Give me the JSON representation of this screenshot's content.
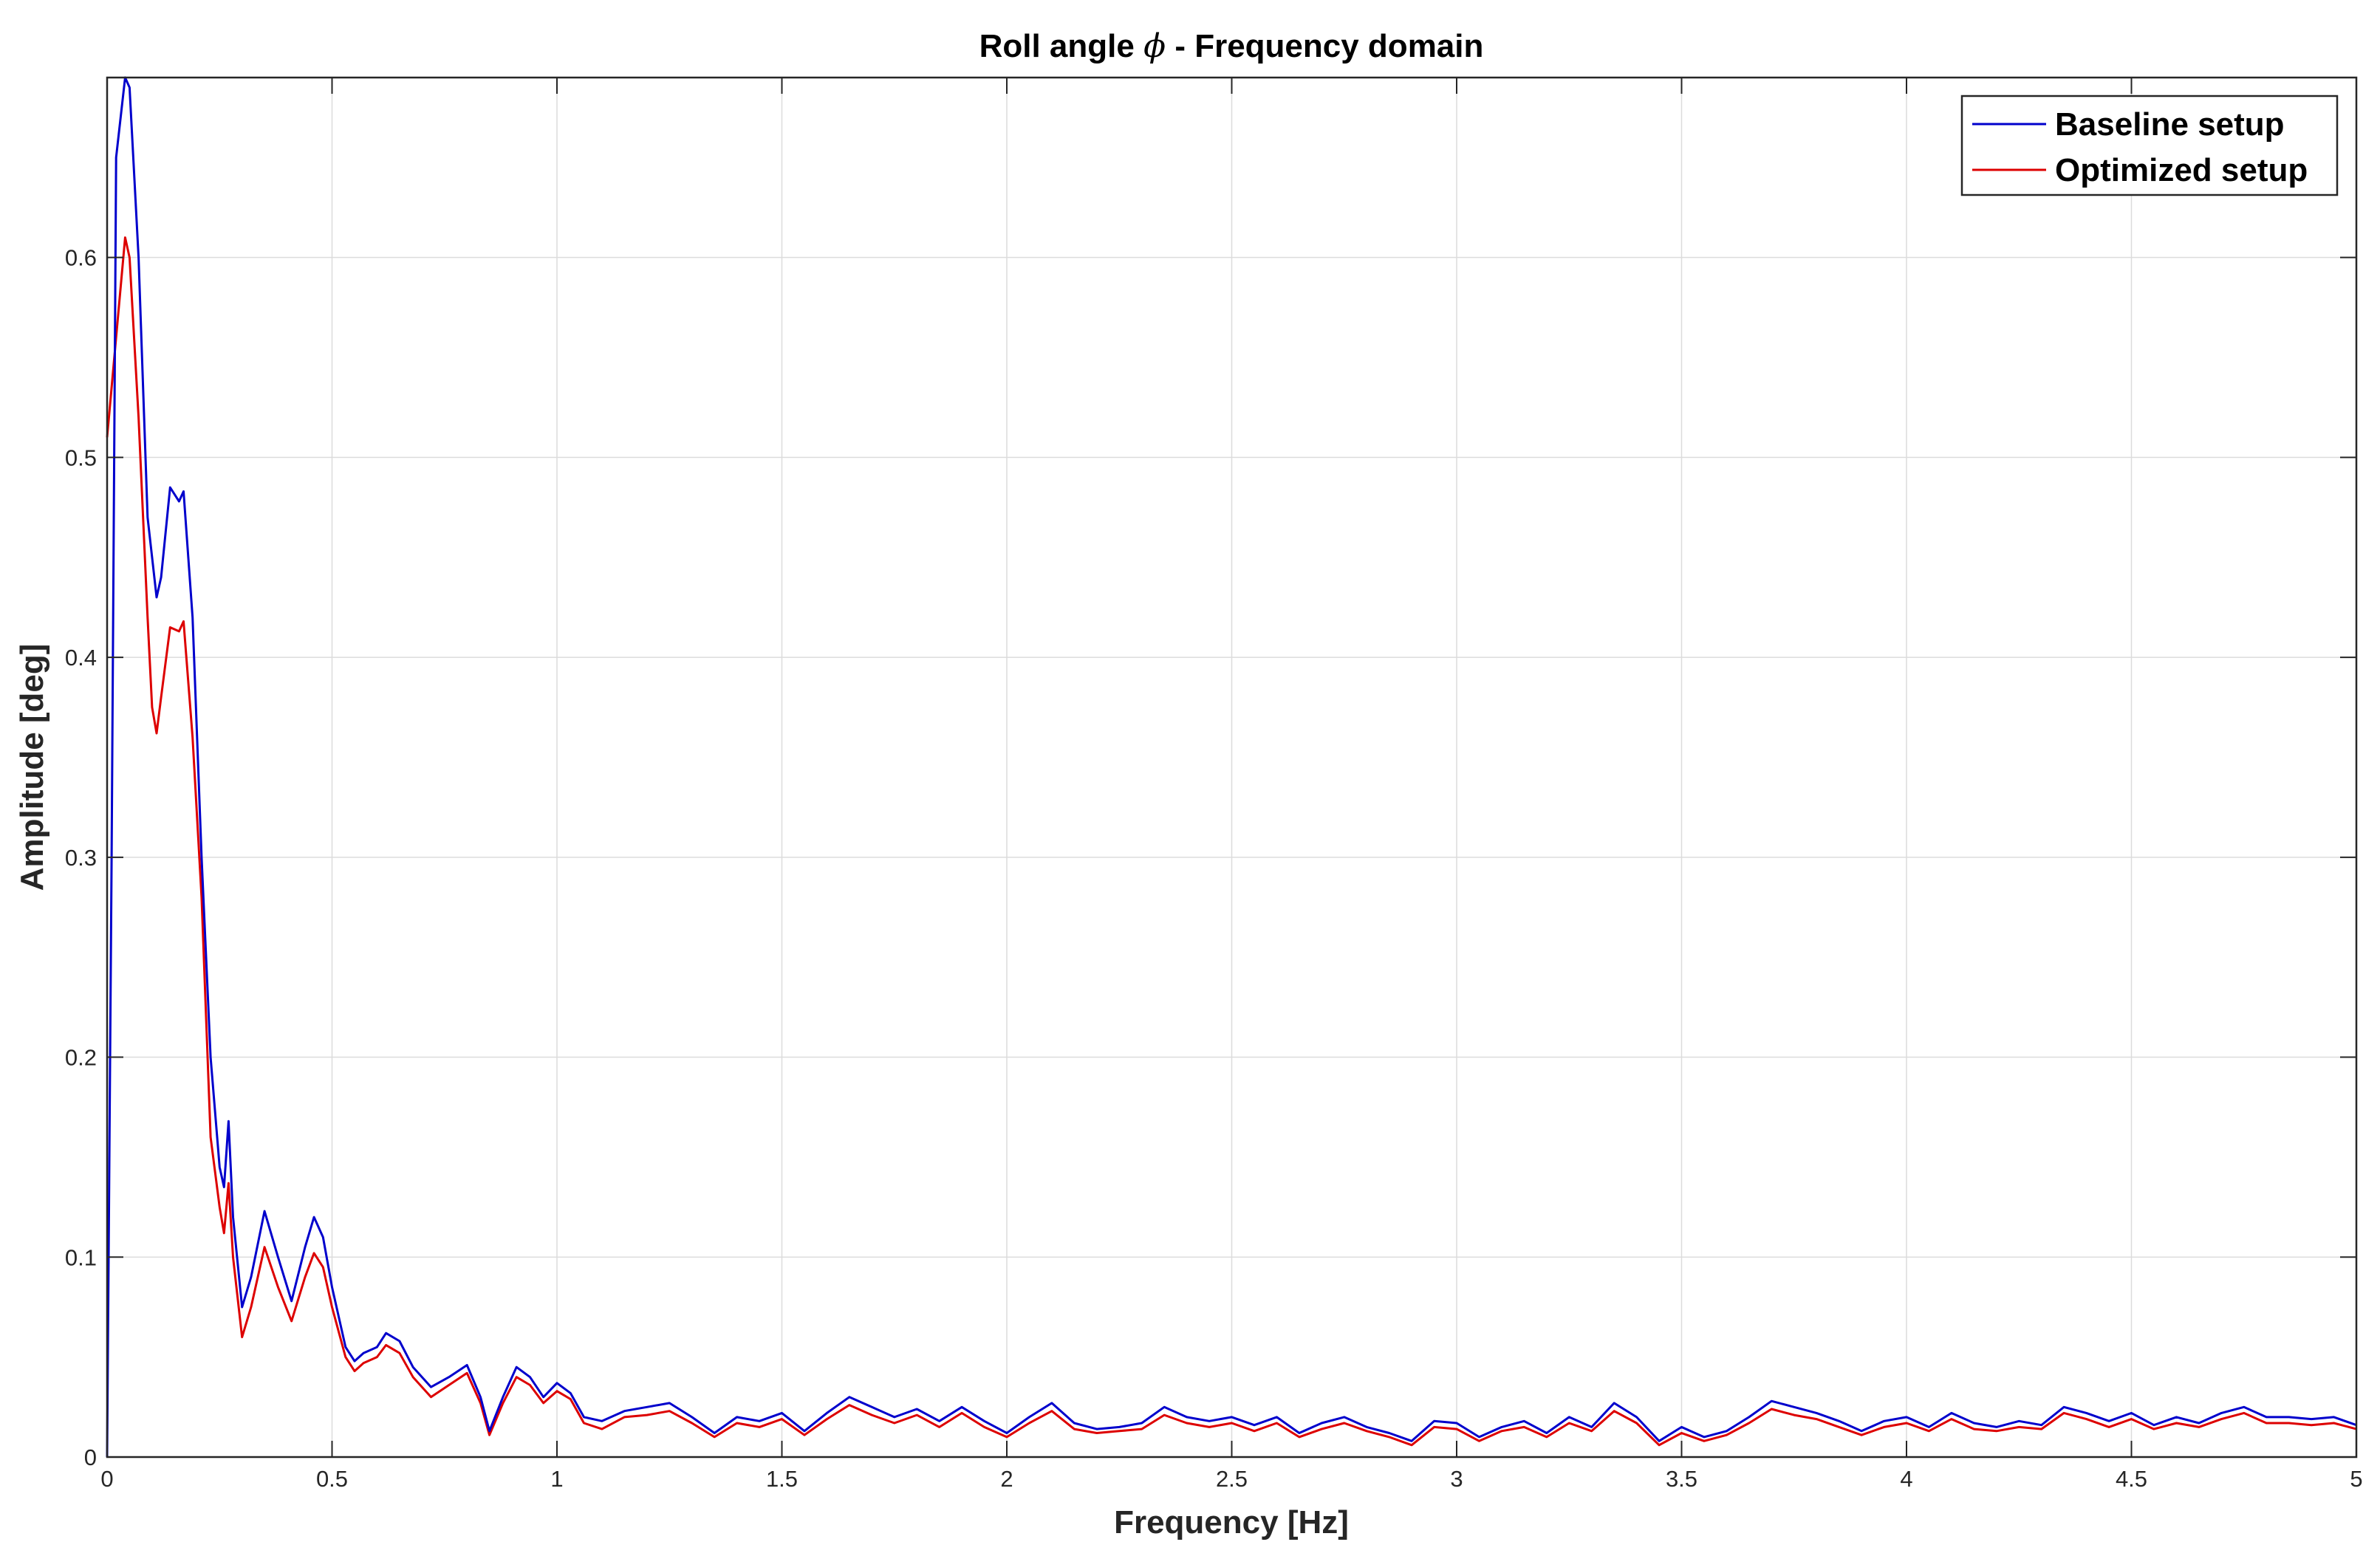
{
  "chart_data": {
    "type": "line",
    "title_pre": "Roll angle ",
    "title_symbol": "ϕ",
    "title_post": " - Frequency domain",
    "xlabel": "Frequency [Hz]",
    "ylabel": "Amplitude [deg]",
    "xlim": [
      0,
      5
    ],
    "ylim": [
      0,
      0.69
    ],
    "grid": true,
    "legend_position": "top-right",
    "x_ticks": [
      0,
      0.5,
      1,
      1.5,
      2,
      2.5,
      3,
      3.5,
      4,
      4.5,
      5
    ],
    "x_tick_labels": [
      "0",
      "0.5",
      "1",
      "1.5",
      "2",
      "2.5",
      "3",
      "3.5",
      "4",
      "4.5",
      "5"
    ],
    "y_ticks": [
      0,
      0.1,
      0.2,
      0.3,
      0.4,
      0.5,
      0.6
    ],
    "y_tick_labels": [
      "0",
      "0.1",
      "0.2",
      "0.3",
      "0.4",
      "0.5",
      "0.6"
    ],
    "series": [
      {
        "name": "Baseline setup",
        "color": "#0000cc",
        "points": [
          [
            0,
            0
          ],
          [
            0.01,
            0.3
          ],
          [
            0.02,
            0.65
          ],
          [
            0.04,
            0.69
          ],
          [
            0.05,
            0.685
          ],
          [
            0.07,
            0.6
          ],
          [
            0.09,
            0.47
          ],
          [
            0.11,
            0.43
          ],
          [
            0.12,
            0.44
          ],
          [
            0.14,
            0.485
          ],
          [
            0.16,
            0.478
          ],
          [
            0.17,
            0.483
          ],
          [
            0.19,
            0.42
          ],
          [
            0.21,
            0.3
          ],
          [
            0.23,
            0.2
          ],
          [
            0.25,
            0.145
          ],
          [
            0.26,
            0.135
          ],
          [
            0.27,
            0.168
          ],
          [
            0.28,
            0.12
          ],
          [
            0.3,
            0.075
          ],
          [
            0.32,
            0.09
          ],
          [
            0.35,
            0.123
          ],
          [
            0.38,
            0.1
          ],
          [
            0.41,
            0.078
          ],
          [
            0.44,
            0.105
          ],
          [
            0.46,
            0.12
          ],
          [
            0.48,
            0.11
          ],
          [
            0.5,
            0.085
          ],
          [
            0.53,
            0.055
          ],
          [
            0.55,
            0.048
          ],
          [
            0.57,
            0.052
          ],
          [
            0.6,
            0.055
          ],
          [
            0.62,
            0.062
          ],
          [
            0.65,
            0.058
          ],
          [
            0.68,
            0.045
          ],
          [
            0.72,
            0.035
          ],
          [
            0.76,
            0.04
          ],
          [
            0.8,
            0.046
          ],
          [
            0.83,
            0.03
          ],
          [
            0.85,
            0.013
          ],
          [
            0.88,
            0.03
          ],
          [
            0.91,
            0.045
          ],
          [
            0.94,
            0.04
          ],
          [
            0.97,
            0.03
          ],
          [
            1,
            0.037
          ],
          [
            1.03,
            0.032
          ],
          [
            1.06,
            0.02
          ],
          [
            1.1,
            0.018
          ],
          [
            1.15,
            0.023
          ],
          [
            1.2,
            0.025
          ],
          [
            1.25,
            0.027
          ],
          [
            1.3,
            0.02
          ],
          [
            1.35,
            0.012
          ],
          [
            1.4,
            0.02
          ],
          [
            1.45,
            0.018
          ],
          [
            1.5,
            0.022
          ],
          [
            1.55,
            0.013
          ],
          [
            1.6,
            0.022
          ],
          [
            1.65,
            0.03
          ],
          [
            1.7,
            0.025
          ],
          [
            1.75,
            0.02
          ],
          [
            1.8,
            0.024
          ],
          [
            1.85,
            0.018
          ],
          [
            1.9,
            0.025
          ],
          [
            1.95,
            0.018
          ],
          [
            2,
            0.012
          ],
          [
            2.05,
            0.02
          ],
          [
            2.1,
            0.027
          ],
          [
            2.15,
            0.017
          ],
          [
            2.2,
            0.014
          ],
          [
            2.25,
            0.015
          ],
          [
            2.3,
            0.017
          ],
          [
            2.35,
            0.025
          ],
          [
            2.4,
            0.02
          ],
          [
            2.45,
            0.018
          ],
          [
            2.5,
            0.02
          ],
          [
            2.55,
            0.016
          ],
          [
            2.6,
            0.02
          ],
          [
            2.65,
            0.012
          ],
          [
            2.7,
            0.017
          ],
          [
            2.75,
            0.02
          ],
          [
            2.8,
            0.015
          ],
          [
            2.85,
            0.012
          ],
          [
            2.9,
            0.008
          ],
          [
            2.95,
            0.018
          ],
          [
            3,
            0.017
          ],
          [
            3.05,
            0.01
          ],
          [
            3.1,
            0.015
          ],
          [
            3.15,
            0.018
          ],
          [
            3.2,
            0.012
          ],
          [
            3.25,
            0.02
          ],
          [
            3.3,
            0.015
          ],
          [
            3.35,
            0.027
          ],
          [
            3.4,
            0.02
          ],
          [
            3.45,
            0.008
          ],
          [
            3.5,
            0.015
          ],
          [
            3.55,
            0.01
          ],
          [
            3.6,
            0.013
          ],
          [
            3.65,
            0.02
          ],
          [
            3.7,
            0.028
          ],
          [
            3.75,
            0.025
          ],
          [
            3.8,
            0.022
          ],
          [
            3.85,
            0.018
          ],
          [
            3.9,
            0.013
          ],
          [
            3.95,
            0.018
          ],
          [
            4,
            0.02
          ],
          [
            4.05,
            0.015
          ],
          [
            4.1,
            0.022
          ],
          [
            4.15,
            0.017
          ],
          [
            4.2,
            0.015
          ],
          [
            4.25,
            0.018
          ],
          [
            4.3,
            0.016
          ],
          [
            4.35,
            0.025
          ],
          [
            4.4,
            0.022
          ],
          [
            4.45,
            0.018
          ],
          [
            4.5,
            0.022
          ],
          [
            4.55,
            0.016
          ],
          [
            4.6,
            0.02
          ],
          [
            4.65,
            0.017
          ],
          [
            4.7,
            0.022
          ],
          [
            4.75,
            0.025
          ],
          [
            4.8,
            0.02
          ],
          [
            4.85,
            0.02
          ],
          [
            4.9,
            0.019
          ],
          [
            4.95,
            0.02
          ],
          [
            5,
            0.016
          ]
        ]
      },
      {
        "name": "Optimized setup",
        "color": "#dd0000",
        "points": [
          [
            0,
            0.51
          ],
          [
            0.02,
            0.56
          ],
          [
            0.04,
            0.61
          ],
          [
            0.05,
            0.6
          ],
          [
            0.07,
            0.52
          ],
          [
            0.09,
            0.42
          ],
          [
            0.1,
            0.375
          ],
          [
            0.11,
            0.362
          ],
          [
            0.12,
            0.38
          ],
          [
            0.14,
            0.415
          ],
          [
            0.16,
            0.413
          ],
          [
            0.17,
            0.418
          ],
          [
            0.19,
            0.36
          ],
          [
            0.21,
            0.28
          ],
          [
            0.23,
            0.16
          ],
          [
            0.25,
            0.125
          ],
          [
            0.26,
            0.112
          ],
          [
            0.27,
            0.137
          ],
          [
            0.28,
            0.1
          ],
          [
            0.3,
            0.06
          ],
          [
            0.32,
            0.075
          ],
          [
            0.35,
            0.105
          ],
          [
            0.38,
            0.085
          ],
          [
            0.41,
            0.068
          ],
          [
            0.44,
            0.09
          ],
          [
            0.46,
            0.102
          ],
          [
            0.48,
            0.095
          ],
          [
            0.5,
            0.075
          ],
          [
            0.53,
            0.05
          ],
          [
            0.55,
            0.043
          ],
          [
            0.57,
            0.047
          ],
          [
            0.6,
            0.05
          ],
          [
            0.62,
            0.056
          ],
          [
            0.65,
            0.052
          ],
          [
            0.68,
            0.04
          ],
          [
            0.72,
            0.03
          ],
          [
            0.76,
            0.036
          ],
          [
            0.8,
            0.042
          ],
          [
            0.83,
            0.027
          ],
          [
            0.85,
            0.011
          ],
          [
            0.88,
            0.027
          ],
          [
            0.91,
            0.04
          ],
          [
            0.94,
            0.036
          ],
          [
            0.97,
            0.027
          ],
          [
            1,
            0.033
          ],
          [
            1.03,
            0.029
          ],
          [
            1.06,
            0.017
          ],
          [
            1.1,
            0.014
          ],
          [
            1.15,
            0.02
          ],
          [
            1.2,
            0.021
          ],
          [
            1.25,
            0.023
          ],
          [
            1.3,
            0.017
          ],
          [
            1.35,
            0.01
          ],
          [
            1.4,
            0.017
          ],
          [
            1.45,
            0.015
          ],
          [
            1.5,
            0.019
          ],
          [
            1.55,
            0.011
          ],
          [
            1.6,
            0.019
          ],
          [
            1.65,
            0.026
          ],
          [
            1.7,
            0.021
          ],
          [
            1.75,
            0.017
          ],
          [
            1.8,
            0.021
          ],
          [
            1.85,
            0.015
          ],
          [
            1.9,
            0.022
          ],
          [
            1.95,
            0.015
          ],
          [
            2,
            0.01
          ],
          [
            2.05,
            0.017
          ],
          [
            2.1,
            0.023
          ],
          [
            2.15,
            0.014
          ],
          [
            2.2,
            0.012
          ],
          [
            2.25,
            0.013
          ],
          [
            2.3,
            0.014
          ],
          [
            2.35,
            0.021
          ],
          [
            2.4,
            0.017
          ],
          [
            2.45,
            0.015
          ],
          [
            2.5,
            0.017
          ],
          [
            2.55,
            0.013
          ],
          [
            2.6,
            0.017
          ],
          [
            2.65,
            0.01
          ],
          [
            2.7,
            0.014
          ],
          [
            2.75,
            0.017
          ],
          [
            2.8,
            0.013
          ],
          [
            2.85,
            0.01
          ],
          [
            2.9,
            0.006
          ],
          [
            2.95,
            0.015
          ],
          [
            3,
            0.014
          ],
          [
            3.05,
            0.008
          ],
          [
            3.1,
            0.013
          ],
          [
            3.15,
            0.015
          ],
          [
            3.2,
            0.01
          ],
          [
            3.25,
            0.017
          ],
          [
            3.3,
            0.013
          ],
          [
            3.35,
            0.023
          ],
          [
            3.4,
            0.017
          ],
          [
            3.45,
            0.006
          ],
          [
            3.5,
            0.012
          ],
          [
            3.55,
            0.008
          ],
          [
            3.6,
            0.011
          ],
          [
            3.65,
            0.017
          ],
          [
            3.7,
            0.024
          ],
          [
            3.75,
            0.021
          ],
          [
            3.8,
            0.019
          ],
          [
            3.85,
            0.015
          ],
          [
            3.9,
            0.011
          ],
          [
            3.95,
            0.015
          ],
          [
            4,
            0.017
          ],
          [
            4.05,
            0.013
          ],
          [
            4.1,
            0.019
          ],
          [
            4.15,
            0.014
          ],
          [
            4.2,
            0.013
          ],
          [
            4.25,
            0.015
          ],
          [
            4.3,
            0.014
          ],
          [
            4.35,
            0.022
          ],
          [
            4.4,
            0.019
          ],
          [
            4.45,
            0.015
          ],
          [
            4.5,
            0.019
          ],
          [
            4.55,
            0.014
          ],
          [
            4.6,
            0.017
          ],
          [
            4.65,
            0.015
          ],
          [
            4.7,
            0.019
          ],
          [
            4.75,
            0.022
          ],
          [
            4.8,
            0.017
          ],
          [
            4.85,
            0.017
          ],
          [
            4.9,
            0.016
          ],
          [
            4.95,
            0.017
          ],
          [
            5,
            0.014
          ]
        ]
      }
    ]
  }
}
